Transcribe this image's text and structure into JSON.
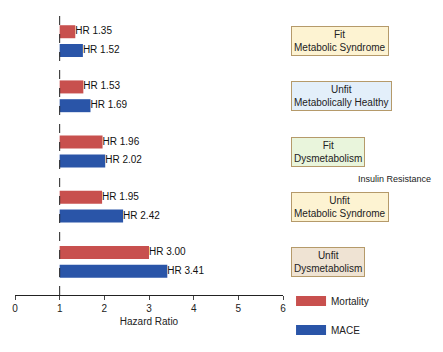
{
  "chart_data": {
    "type": "bar",
    "orientation": "horizontal",
    "categories": [
      "Fit Metabolic Syndrome",
      "Unfit Metabolically Healthy",
      "Fit Dysmetabolism",
      "Unfit Metabolic Syndrome",
      "Unfit Dysmetabolism"
    ],
    "series": [
      {
        "name": "Mortality",
        "color": "#c8504e",
        "values": [
          1.35,
          1.53,
          1.96,
          1.95,
          3.0
        ],
        "value_labels": [
          "HR 1.35",
          "HR 1.53",
          "HR 1.96",
          "HR 1.95",
          "HR 3.00"
        ]
      },
      {
        "name": "MACE",
        "color": "#2a55a8",
        "values": [
          1.52,
          1.69,
          2.02,
          2.42,
          3.41
        ],
        "value_labels": [
          "HR 1.52",
          "HR 1.69",
          "HR 2.02",
          "HR 2.42",
          "HR 3.41"
        ]
      }
    ],
    "xlim": [
      0,
      6
    ],
    "xticks": [
      0,
      1,
      2,
      3,
      4,
      5,
      6
    ],
    "xlabel": "Hazard Ratio",
    "reference_line": 1,
    "data_labels": true,
    "tick_labels": "x",
    "legend": "bottom right",
    "annotations": [
      {
        "text": "Insulin Resistance"
      }
    ]
  }
}
